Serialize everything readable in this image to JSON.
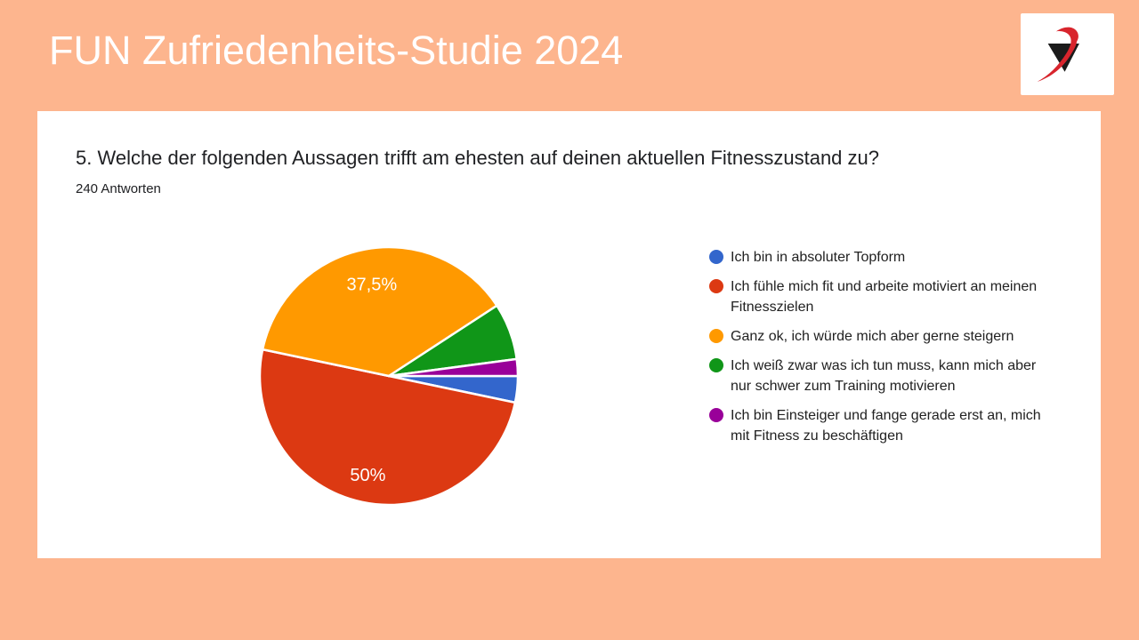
{
  "header": {
    "title": "FUN Zufriedenheits-Studie 2024"
  },
  "logo": {
    "name": "brand-logo",
    "bg_color": "#FFFFFF",
    "triangle_color": "#1B1B1B",
    "swoosh_color": "#D8252D"
  },
  "card": {
    "question": "5. Welche der folgenden Aussagen trifft am ehesten auf deinen aktuellen Fitnesszustand zu?",
    "answers_count": "240 Antworten"
  },
  "chart_data": {
    "type": "pie",
    "title": "5. Welche der folgenden Aussagen trifft am ehesten auf deinen aktuellen Fitnesszustand zu?",
    "subtitle": "240 Antworten",
    "legend_position": "right",
    "start_angle_deg_clockwise_from_east": 0,
    "slices": [
      {
        "name": "topform",
        "label": "Ich bin in absoluter Topform",
        "percent": 3.3,
        "data_label": "",
        "color": "#3366CC"
      },
      {
        "name": "fit-und-motiviert",
        "label": "Ich fühle mich fit und arbeite motiviert an meinen Fitnesszielen",
        "percent": 50,
        "data_label": "50%",
        "label_radius": 0.79,
        "color": "#DC3912"
      },
      {
        "name": "ganz-ok",
        "label": "Ganz ok, ich würde mich aber gerne steigern",
        "percent": 37.5,
        "data_label": "37,5%",
        "label_radius": 0.72,
        "color": "#FF9900"
      },
      {
        "name": "schwer-zu-motivieren",
        "label": "Ich weiß zwar was ich tun muss, kann mich aber nur schwer zum Training motivieren",
        "percent": 7.1,
        "data_label": "",
        "color": "#109618"
      },
      {
        "name": "einsteiger",
        "label": "Ich bin Einsteiger und fange gerade erst an, mich mit Fitness zu beschäftigen",
        "percent": 2.1,
        "data_label": "",
        "color": "#990099"
      }
    ]
  },
  "colors": {
    "page_background": "#FDB58E",
    "card_background": "#FFFFFF",
    "title_text": "#FFFFFF",
    "body_text": "#202124",
    "slice_label_text": "#FFFFFF"
  }
}
